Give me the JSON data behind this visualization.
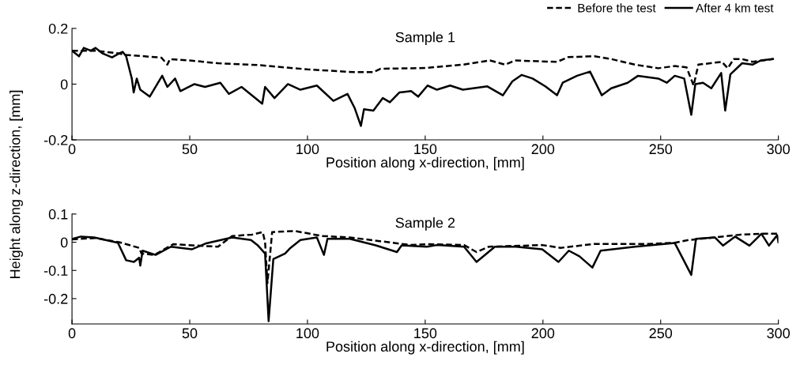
{
  "chart_data": [
    {
      "type": "line",
      "title": "Sample 1",
      "xlabel": "Position along x-direction, [mm]",
      "ylabel": "Height along z-direction, [mm]",
      "xlim": [
        0,
        300
      ],
      "xticks": [
        0,
        50,
        100,
        150,
        200,
        250,
        300
      ],
      "ylim": [
        -0.2,
        0.2
      ],
      "yticks": [
        -0.2,
        0,
        0.2
      ],
      "grid": false,
      "legend": "top right",
      "series": [
        {
          "name": "Before the test",
          "color": "#000000",
          "line_style": "dashed",
          "x": [
            0,
            10,
            20,
            23,
            38,
            40.5,
            41.6,
            50,
            62,
            80,
            100,
            120,
            128,
            131,
            150,
            166,
            177.5,
            184,
            188,
            206,
            210.7,
            222,
            229,
            239,
            249,
            256,
            261,
            264,
            266,
            276,
            278.5,
            281,
            284.6,
            289,
            297.7
          ],
          "values": [
            0.12,
            0.12,
            0.11,
            0.105,
            0.095,
            0.07,
            0.09,
            0.085,
            0.075,
            0.068,
            0.053,
            0.043,
            0.043,
            0.055,
            0.058,
            0.07,
            0.085,
            0.07,
            0.085,
            0.08,
            0.097,
            0.1,
            0.09,
            0.07,
            0.057,
            0.065,
            0.06,
            -0.005,
            0.07,
            0.08,
            0.057,
            0.09,
            0.09,
            0.08,
            0.09
          ]
        },
        {
          "name": "After 4 km test",
          "color": "#000000",
          "line_style": "solid",
          "x": [
            0,
            3,
            5,
            8,
            10,
            13,
            17,
            20,
            21.5,
            23,
            25.4,
            26.2,
            27.5,
            29,
            33,
            38.3,
            40.5,
            43.8,
            46,
            52,
            56.5,
            63,
            66.6,
            72,
            80.8,
            82,
            86,
            91.7,
            97,
            104,
            111,
            117,
            120,
            122.7,
            124,
            128,
            132,
            135,
            139,
            144,
            147,
            151,
            155,
            160.6,
            166,
            176.4,
            183,
            187,
            191,
            195.6,
            201,
            206,
            208.4,
            214.5,
            220,
            225,
            229,
            236,
            240.4,
            249,
            252.6,
            256,
            260,
            263,
            264.7,
            268,
            271.5,
            275.7,
            277.4,
            279.6,
            284.6,
            289,
            292.5,
            297.7
          ],
          "values": [
            0.12,
            0.1,
            0.13,
            0.12,
            0.13,
            0.11,
            0.096,
            0.11,
            0.116,
            0.1,
            0.02,
            -0.03,
            0.02,
            -0.02,
            -0.045,
            0.03,
            -0.01,
            0.02,
            -0.025,
            0.0,
            -0.01,
            0.005,
            -0.035,
            -0.01,
            -0.07,
            -0.01,
            -0.05,
            0.0,
            -0.02,
            -0.005,
            -0.06,
            -0.035,
            -0.085,
            -0.15,
            -0.09,
            -0.095,
            -0.05,
            -0.065,
            -0.03,
            -0.025,
            -0.045,
            -0.005,
            -0.02,
            -0.005,
            -0.02,
            -0.008,
            -0.04,
            0.01,
            0.033,
            0.02,
            -0.008,
            -0.04,
            0.005,
            0.03,
            0.045,
            -0.04,
            -0.015,
            0.005,
            0.03,
            0.02,
            0.005,
            0.03,
            0.02,
            -0.11,
            0.0,
            0.005,
            -0.015,
            0.04,
            -0.095,
            0.035,
            0.075,
            0.07,
            0.085,
            0.09
          ]
        }
      ]
    },
    {
      "type": "line",
      "title": "Sample 2",
      "xlabel": "Position along x-direction, [mm]",
      "xlim": [
        0,
        300
      ],
      "xticks": [
        0,
        50,
        100,
        150,
        200,
        250,
        300
      ],
      "ylim": [
        -0.29,
        0.1
      ],
      "yticks": [
        -0.2,
        -0.1,
        0,
        0.1
      ],
      "grid": false,
      "series": [
        {
          "color": "#000000",
          "line_style": "dashed",
          "x": [
            0,
            10,
            20,
            23,
            28.5,
            29.5,
            35,
            43,
            51,
            62,
            68,
            76.5,
            81,
            82,
            83,
            85,
            94.6,
            101,
            106,
            118,
            144,
            150.7,
            166.5,
            171.8,
            177,
            199.7,
            207.5,
            222,
            244.4,
            256,
            262,
            273,
            284,
            292.8,
            299.5
          ],
          "values": [
            0.01,
            0.015,
            0.0,
            -0.007,
            -0.02,
            -0.04,
            -0.045,
            -0.007,
            -0.011,
            -0.016,
            0.022,
            0.027,
            0.036,
            0.0,
            -0.145,
            0.036,
            0.04,
            0.03,
            0.022,
            0.017,
            -0.01,
            -0.007,
            -0.01,
            -0.035,
            -0.016,
            -0.01,
            -0.02,
            -0.006,
            -0.006,
            -0.002,
            0.008,
            0.017,
            0.027,
            0.03,
            0.03
          ]
        },
        {
          "color": "#000000",
          "line_style": "solid",
          "x": [
            0.3,
            3.8,
            9.4,
            19.5,
            23,
            26.3,
            28.5,
            29,
            30,
            35.5,
            42,
            51,
            57,
            68,
            76,
            79,
            82,
            83.5,
            85.5,
            90.5,
            92.8,
            97,
            104,
            107,
            108.5,
            118,
            129,
            138,
            140,
            150.7,
            155,
            166.5,
            171.8,
            179.6,
            188.6,
            199.7,
            206.6,
            211,
            215.5,
            221,
            224.5,
            239,
            256,
            263,
            265,
            273,
            276.5,
            281.6,
            287.7,
            292.8,
            296,
            299.5,
            300
          ],
          "values": [
            0.012,
            0.02,
            0.017,
            -0.002,
            -0.064,
            -0.07,
            -0.055,
            -0.083,
            -0.03,
            -0.045,
            -0.016,
            -0.025,
            -0.004,
            0.017,
            0.008,
            -0.012,
            -0.04,
            -0.28,
            -0.06,
            -0.04,
            -0.02,
            0.008,
            0.017,
            -0.045,
            0.012,
            0.012,
            -0.011,
            -0.035,
            -0.011,
            -0.016,
            -0.01,
            -0.016,
            -0.07,
            -0.016,
            -0.016,
            -0.025,
            -0.07,
            -0.03,
            -0.05,
            -0.09,
            -0.03,
            -0.016,
            -0.003,
            -0.116,
            0.012,
            0.017,
            -0.012,
            0.02,
            -0.012,
            0.03,
            -0.012,
            0.025,
            0.0
          ]
        }
      ]
    }
  ]
}
